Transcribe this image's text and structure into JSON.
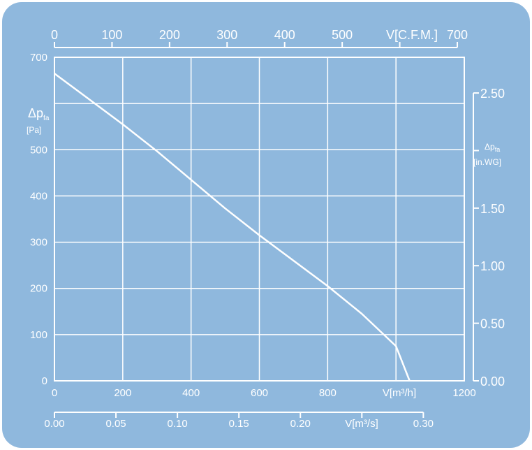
{
  "chart_data": {
    "type": "line",
    "title": "",
    "grid": true,
    "legend": "none",
    "colors": {
      "background": "#8fb8dd",
      "line": "#ffffff",
      "grid": "#ffffff",
      "text": "#ffffff"
    },
    "x_axis_bottom": {
      "label": "V[m³/h]",
      "range": [
        0,
        1200
      ],
      "ticks": [
        "0",
        "200",
        "400",
        "600",
        "800",
        "1200"
      ]
    },
    "x_axis_bottom_secondary": {
      "label": "V[m³/s]",
      "range": [
        0,
        0.3333
      ],
      "ticks": [
        "0.00",
        "0.05",
        "0.10",
        "0.15",
        "0.20",
        "0.30"
      ]
    },
    "x_axis_top": {
      "label": "V[C.F.M.]",
      "range": [
        0,
        700
      ],
      "ticks": [
        "0",
        "100",
        "200",
        "300",
        "400",
        "500",
        "700"
      ]
    },
    "y_axis_left": {
      "label": "Δpfa",
      "label_sub": "fa",
      "label_main": "Δp",
      "unit": "[Pa]",
      "range": [
        0,
        700
      ],
      "ticks": [
        "0",
        "100",
        "200",
        "300",
        "400",
        "500",
        "700"
      ]
    },
    "y_axis_right": {
      "label_main": "Δp",
      "label_sub": "fa",
      "unit": "[in.WG]",
      "range": [
        0,
        2.81
      ],
      "ticks": [
        "0.00",
        "0.50",
        "1.00",
        "1.50",
        "2.50"
      ]
    },
    "series": [
      {
        "x": [
          0,
          100,
          200,
          300,
          400,
          500,
          600,
          700,
          800,
          900,
          1000,
          1040
        ],
        "y": [
          665,
          610,
          555,
          497,
          435,
          373,
          315,
          260,
          205,
          145,
          75,
          0
        ]
      }
    ]
  }
}
